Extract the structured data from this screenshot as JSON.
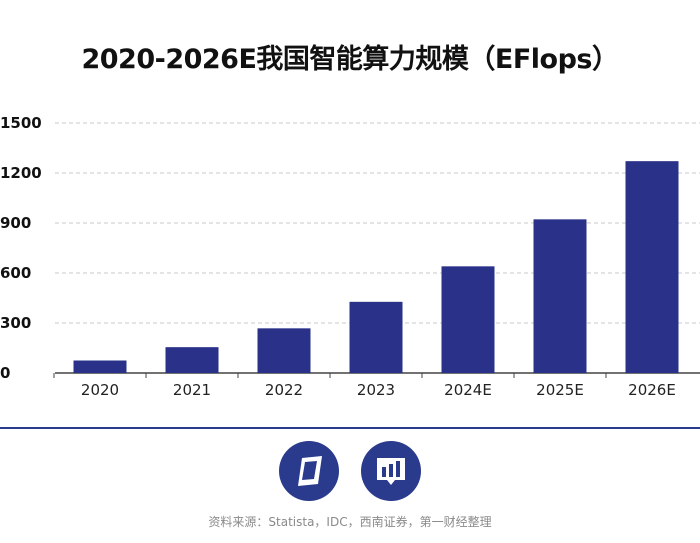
{
  "title": "2020-2026E我国智能算力规模（EFlops）",
  "source": "资料来源：Statista，IDC，西南证券，第一财经整理",
  "colors": {
    "bar": "#2a3188",
    "grid": "#c8c8c8",
    "axis": "#444444",
    "footer_line": "#2a3a8c",
    "logo": "#2a3a8c"
  },
  "logos": [
    "第一财经-icon",
    "数据-icon"
  ],
  "chart_data": {
    "type": "bar",
    "title": "2020-2026E我国智能算力规模（EFlops）",
    "categories": [
      "2020",
      "2021",
      "2022",
      "2023",
      "2024E",
      "2025E",
      "2026E"
    ],
    "values": [
      75,
      155,
      268,
      427,
      640,
      922,
      1271
    ],
    "yticks": [
      0,
      300,
      600,
      900,
      1200,
      1500
    ],
    "ylim": [
      0,
      1500
    ],
    "xlabel": "",
    "ylabel": "",
    "grid": true
  }
}
